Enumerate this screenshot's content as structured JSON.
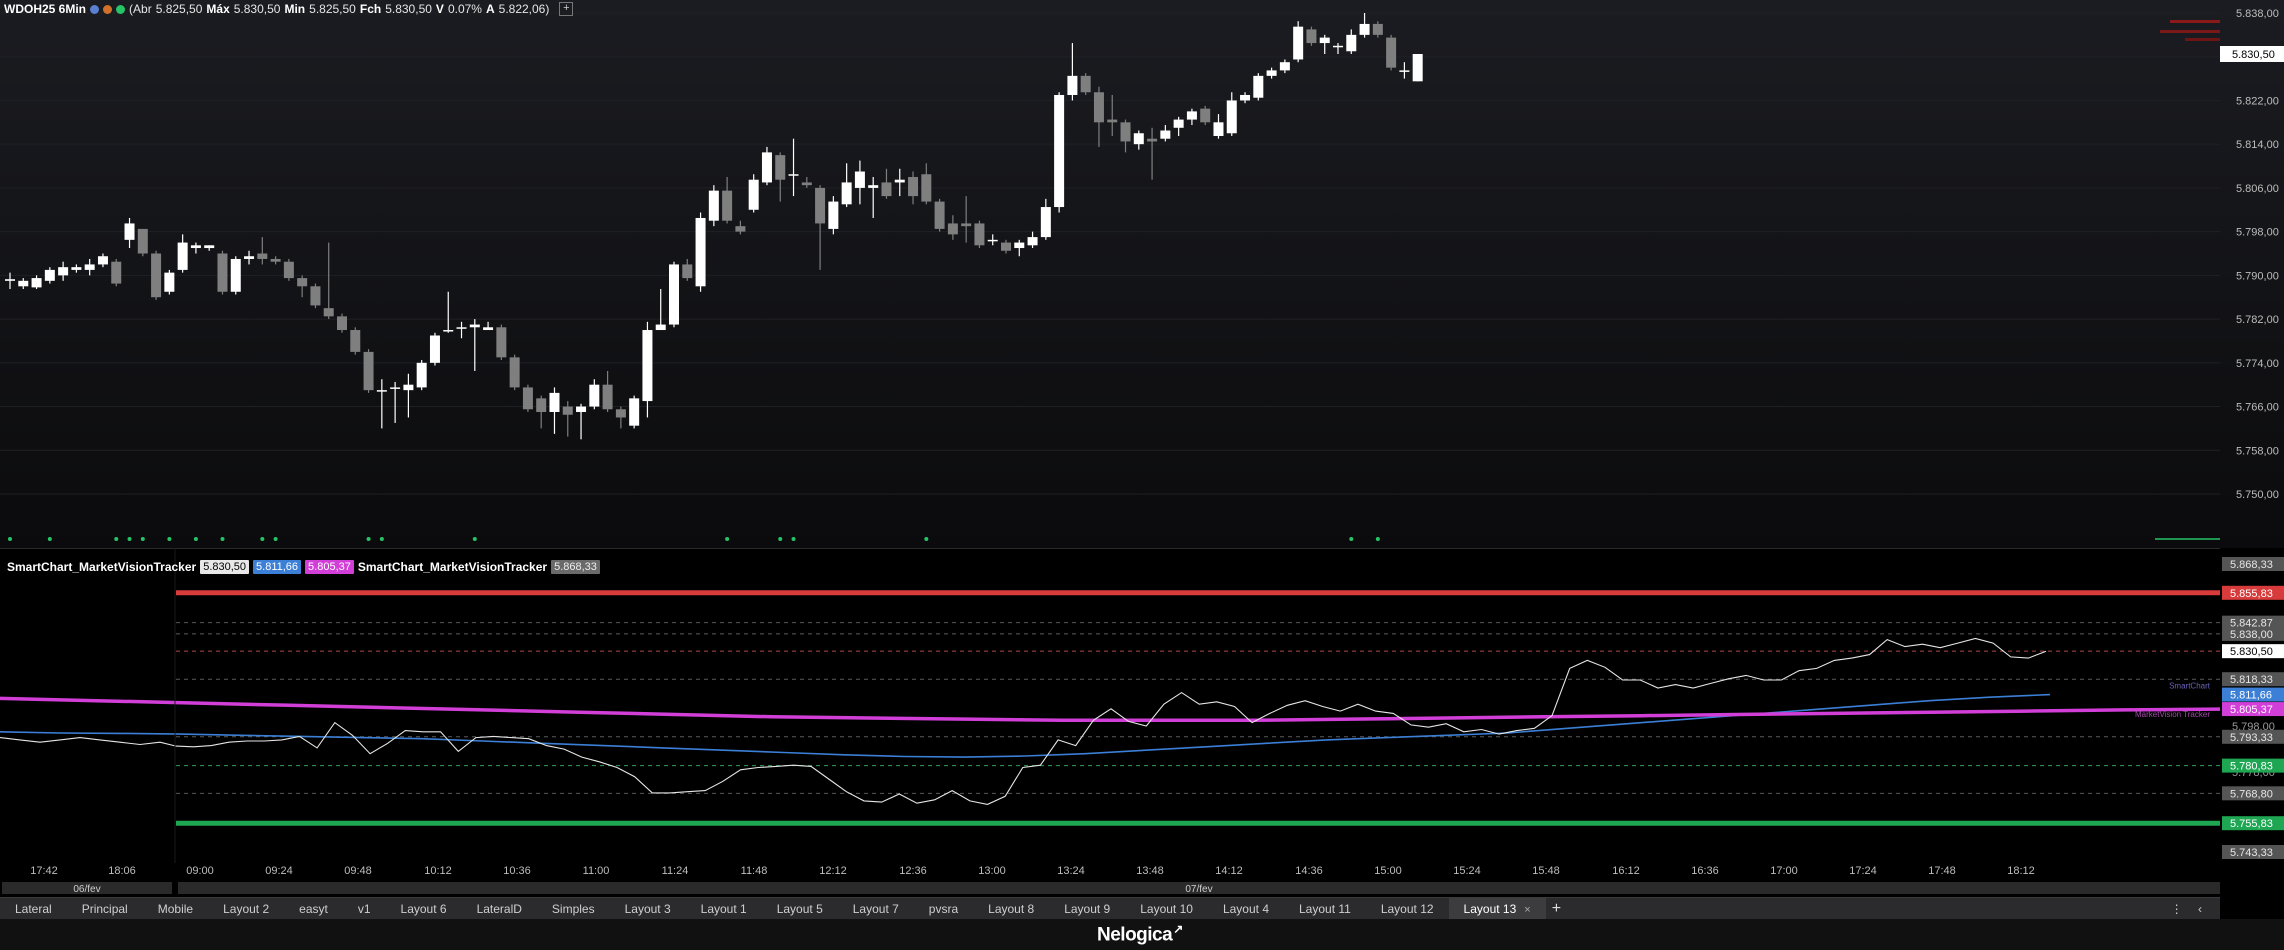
{
  "header": {
    "symbol": "WDOH25 6Min",
    "abr_label": "(Abr",
    "abr": "5.825,50",
    "max_label": "Máx",
    "max": "5.830,50",
    "min_label": "Min",
    "min": "5.825,50",
    "fch_label": "Fch",
    "fch": "5.830,50",
    "v_label": "V",
    "v": "0.07%",
    "a_label": "A",
    "a": "5.822,06)",
    "plus": "+"
  },
  "indicator_legend": {
    "name1": "SmartChart_MarketVisionTracker",
    "val1": "5.830,50",
    "val2": "5.811,66",
    "val3": "5.805,37",
    "name2": "SmartChart_MarketVisionTracker",
    "val4": "5.868,33"
  },
  "colors": {
    "up": "#ffffff",
    "down": "#7f7f7f",
    "blue": "#3b7fd6",
    "magenta": "#d23ed8",
    "red": "#d83b3b",
    "green": "#1fa653"
  },
  "chart_data": {
    "type": "candlestick",
    "title": "WDOH25 6Min",
    "price_axis": {
      "ylim": [
        5750,
        5838
      ],
      "ticks": [
        "5.838,00",
        "5.830,00",
        "5.822,00",
        "5.814,00",
        "5.806,00",
        "5.798,00",
        "5.790,00",
        "5.782,00",
        "5.774,00",
        "5.766,00",
        "5.758,00",
        "5.750,00"
      ],
      "current": "5.830,50"
    },
    "x_axis": {
      "ticks": [
        "17:42",
        "18:06",
        "09:00",
        "09:24",
        "09:48",
        "10:12",
        "10:36",
        "11:00",
        "11:24",
        "11:48",
        "12:12",
        "12:36",
        "13:00",
        "13:24",
        "13:48",
        "14:12",
        "14:36",
        "15:00",
        "15:24",
        "15:48",
        "16:12",
        "16:36",
        "17:00",
        "17:24",
        "17:48",
        "18:12"
      ],
      "dates": [
        "06/fev",
        "07/fev"
      ]
    },
    "candles": [
      [
        5789.0,
        5789.3,
        5787.5,
        5790.5
      ],
      [
        5788.0,
        5789.0,
        5787.5,
        5789.5
      ],
      [
        5787.8,
        5789.5,
        5787.5,
        5790.0
      ],
      [
        5789.0,
        5791.0,
        5788.5,
        5791.5
      ],
      [
        5790.0,
        5791.5,
        5789.0,
        5792.5
      ],
      [
        5791.0,
        5791.5,
        5790.5,
        5792.0
      ],
      [
        5791.0,
        5792.0,
        5790.0,
        5793.0
      ],
      [
        5792.0,
        5793.5,
        5791.5,
        5794.0
      ],
      [
        5792.5,
        5788.5,
        5788.0,
        5793.0
      ],
      [
        5796.5,
        5799.5,
        5795.0,
        5800.5
      ],
      [
        5798.5,
        5794.0,
        5793.5,
        5798.5
      ],
      [
        5794.0,
        5786.0,
        5785.5,
        5794.5
      ],
      [
        5787.0,
        5790.5,
        5786.5,
        5791.0
      ],
      [
        5791.0,
        5796.0,
        5790.5,
        5797.5
      ],
      [
        5795.0,
        5795.5,
        5794.0,
        5796.0
      ],
      [
        5795.0,
        5795.5,
        5794.5,
        5795.5
      ],
      [
        5794.0,
        5787.0,
        5786.5,
        5794.5
      ],
      [
        5787.0,
        5793.0,
        5786.5,
        5793.5
      ],
      [
        5793.0,
        5793.5,
        5792.0,
        5794.5
      ],
      [
        5794.0,
        5793.0,
        5792.0,
        5797.0
      ],
      [
        5793.0,
        5792.5,
        5792.0,
        5793.5
      ],
      [
        5792.5,
        5789.5,
        5789.0,
        5793.0
      ],
      [
        5789.5,
        5788.0,
        5786.0,
        5790.0
      ],
      [
        5788.0,
        5784.5,
        5784.0,
        5788.5
      ],
      [
        5784.0,
        5782.5,
        5782.0,
        5796.0
      ],
      [
        5782.5,
        5780.0,
        5779.5,
        5783.0
      ],
      [
        5780.0,
        5776.0,
        5775.5,
        5780.5
      ],
      [
        5776.0,
        5769.0,
        5768.5,
        5776.5
      ],
      [
        5769.0,
        5769.0,
        5762.0,
        5771.0
      ],
      [
        5769.5,
        5769.5,
        5763.0,
        5770.5
      ],
      [
        5769.0,
        5770.0,
        5764.0,
        5772.0
      ],
      [
        5769.5,
        5774.0,
        5769.0,
        5774.5
      ],
      [
        5774.0,
        5779.0,
        5773.5,
        5779.5
      ],
      [
        5780.0,
        5780.0,
        5779.5,
        5787.0
      ],
      [
        5780.5,
        5780.5,
        5778.5,
        5781.5
      ],
      [
        5780.5,
        5781.0,
        5772.5,
        5782.0
      ],
      [
        5780.0,
        5780.5,
        5780.0,
        5781.5
      ],
      [
        5780.5,
        5775.0,
        5774.5,
        5781.0
      ],
      [
        5775.0,
        5769.5,
        5769.0,
        5775.5
      ],
      [
        5769.5,
        5765.5,
        5765.0,
        5770.0
      ],
      [
        5767.5,
        5765.0,
        5762.0,
        5768.0
      ],
      [
        5765.0,
        5768.5,
        5761.0,
        5769.5
      ],
      [
        5766.0,
        5764.5,
        5760.5,
        5767.0
      ],
      [
        5765.0,
        5766.0,
        5760.0,
        5766.5
      ],
      [
        5766.0,
        5770.0,
        5765.5,
        5771.0
      ],
      [
        5770.0,
        5765.5,
        5765.0,
        5772.5
      ],
      [
        5765.5,
        5764.0,
        5762.0,
        5766.0
      ],
      [
        5762.5,
        5767.5,
        5762.0,
        5768.0
      ],
      [
        5767.0,
        5780.0,
        5764.0,
        5781.5
      ],
      [
        5780.0,
        5781.0,
        5780.0,
        5787.5
      ],
      [
        5781.0,
        5792.0,
        5780.5,
        5792.5
      ],
      [
        5792.0,
        5789.5,
        5789.0,
        5793.0
      ],
      [
        5788.0,
        5800.5,
        5787.0,
        5801.5
      ],
      [
        5800.0,
        5805.5,
        5799.0,
        5806.5
      ],
      [
        5805.5,
        5800.0,
        5799.5,
        5808.0
      ],
      [
        5799.0,
        5798.0,
        5797.5,
        5800.0
      ],
      [
        5802.0,
        5807.5,
        5801.5,
        5808.5
      ],
      [
        5807.0,
        5812.5,
        5806.5,
        5813.5
      ],
      [
        5812.0,
        5807.5,
        5803.5,
        5812.5
      ],
      [
        5808.5,
        5808.5,
        5804.5,
        5815.0
      ],
      [
        5807.0,
        5806.5,
        5806.0,
        5808.0
      ],
      [
        5806.0,
        5799.5,
        5791.0,
        5806.5
      ],
      [
        5798.5,
        5803.5,
        5797.5,
        5804.5
      ],
      [
        5803.0,
        5807.0,
        5802.5,
        5810.5
      ],
      [
        5806.0,
        5809.0,
        5803.0,
        5811.0
      ],
      [
        5806.0,
        5806.5,
        5800.5,
        5808.0
      ],
      [
        5807.0,
        5804.5,
        5804.0,
        5809.5
      ],
      [
        5807.0,
        5807.5,
        5804.5,
        5809.5
      ],
      [
        5808.0,
        5804.5,
        5803.0,
        5809.0
      ],
      [
        5808.5,
        5803.5,
        5803.0,
        5810.5
      ],
      [
        5803.5,
        5798.5,
        5798.0,
        5804.0
      ],
      [
        5799.5,
        5797.5,
        5796.5,
        5801.0
      ],
      [
        5799.5,
        5799.0,
        5796.0,
        5804.5
      ],
      [
        5799.5,
        5795.5,
        5795.0,
        5800.0
      ],
      [
        5796.5,
        5796.5,
        5795.5,
        5797.5
      ],
      [
        5796.0,
        5794.5,
        5794.0,
        5796.5
      ],
      [
        5795.0,
        5796.0,
        5793.5,
        5796.5
      ],
      [
        5795.5,
        5797.0,
        5795.0,
        5798.0
      ],
      [
        5797.0,
        5802.5,
        5796.5,
        5804.0
      ],
      [
        5802.5,
        5823.0,
        5801.5,
        5823.5
      ],
      [
        5823.0,
        5826.5,
        5822.0,
        5832.5
      ],
      [
        5826.5,
        5823.5,
        5823.0,
        5827.0
      ],
      [
        5823.5,
        5818.0,
        5813.5,
        5824.5
      ],
      [
        5818.5,
        5818.0,
        5815.5,
        5823.0
      ],
      [
        5818.0,
        5814.5,
        5812.5,
        5818.5
      ],
      [
        5814.0,
        5816.0,
        5813.0,
        5816.5
      ],
      [
        5815.0,
        5814.5,
        5807.5,
        5817.0
      ],
      [
        5815.0,
        5816.5,
        5814.5,
        5817.5
      ],
      [
        5817.0,
        5818.5,
        5815.5,
        5819.0
      ],
      [
        5818.5,
        5820.0,
        5817.5,
        5820.5
      ],
      [
        5820.5,
        5818.0,
        5817.5,
        5821.0
      ],
      [
        5815.5,
        5818.0,
        5815.0,
        5819.5
      ],
      [
        5816.0,
        5822.0,
        5815.5,
        5823.5
      ],
      [
        5822.0,
        5823.0,
        5821.5,
        5823.5
      ],
      [
        5822.5,
        5826.5,
        5822.0,
        5827.0
      ],
      [
        5826.5,
        5827.5,
        5826.0,
        5828.0
      ],
      [
        5827.5,
        5829.0,
        5827.0,
        5829.5
      ],
      [
        5829.5,
        5835.5,
        5829.0,
        5836.5
      ],
      [
        5835.0,
        5832.5,
        5832.0,
        5835.5
      ],
      [
        5832.5,
        5833.5,
        5830.5,
        5834.0
      ],
      [
        5832.0,
        5832.0,
        5830.5,
        5832.5
      ],
      [
        5831.0,
        5834.0,
        5830.5,
        5835.0
      ],
      [
        5834.0,
        5836.0,
        5833.5,
        5838.0
      ],
      [
        5836.0,
        5834.0,
        5833.5,
        5836.5
      ],
      [
        5833.5,
        5828.0,
        5827.5,
        5834.0
      ],
      [
        5827.5,
        5827.5,
        5826.0,
        5829.0
      ],
      [
        5825.5,
        5830.5,
        5825.5,
        5830.5
      ]
    ],
    "signal_dot_candles": [
      0,
      3,
      8,
      9,
      10,
      12,
      14,
      16,
      19,
      20,
      27,
      28,
      35,
      54,
      58,
      59,
      69,
      101,
      103
    ],
    "indicator": {
      "name": "SmartChart_MarketVisionTracker",
      "ylim": [
        5743.33,
        5868.33
      ],
      "levels": [
        {
          "value": 5855.83,
          "label": "5.855,83",
          "kind": "red"
        },
        {
          "value": 5842.87,
          "label": "5.842,87",
          "kind": "dash"
        },
        {
          "value": 5838.0,
          "label": "5.838,00",
          "kind": "dash"
        },
        {
          "value": 5830.5,
          "label": "5.830,50",
          "kind": "dash-red"
        },
        {
          "value": 5818.33,
          "label": "5.818,33",
          "kind": "dash"
        },
        {
          "value": 5793.33,
          "label": "5.793,33",
          "kind": "dash"
        },
        {
          "value": 5780.83,
          "label": "5.780,83",
          "kind": "dash-green"
        },
        {
          "value": 5768.8,
          "label": "5.768,80",
          "kind": "dash"
        },
        {
          "value": 5755.83,
          "label": "5.755,83",
          "kind": "green"
        }
      ],
      "extra_ticks": [
        {
          "value": 5868.33,
          "label": "5.868,33"
        },
        {
          "value": 5743.33,
          "label": "5.743,33"
        },
        {
          "value": 5798.0,
          "label": "5.798,00"
        },
        {
          "value": 5778.0,
          "label": "5.778,00"
        }
      ],
      "series": [
        {
          "name": "SmartChart",
          "value_label": "5.811,66",
          "kind": "blue"
        },
        {
          "name": "MarketVision Tracker",
          "value_label": "5.805,37",
          "kind": "magenta"
        }
      ],
      "blue_values": [
        5795.5,
        5795.0,
        5794.8,
        5794.5,
        5794.0,
        5793.5,
        5793.0,
        5792.5,
        5791.5,
        5790.5,
        5789.5,
        5788.5,
        5787.5,
        5786.5,
        5785.5,
        5784.8,
        5784.5,
        5785.0,
        5786.0,
        5787.5,
        5789.0,
        5790.5,
        5792.0,
        5793.0,
        5794.0,
        5795.0,
        5797.0,
        5799.0,
        5801.0,
        5803.0,
        5805.0,
        5807.0,
        5809.0,
        5810.5,
        5811.66
      ],
      "magenta_values": [
        5810.0,
        5809.0,
        5808.0,
        5807.0,
        5806.0,
        5805.0,
        5804.0,
        5803.0,
        5802.0,
        5801.5,
        5801.0,
        5800.5,
        5800.5,
        5800.5,
        5801.0,
        5801.5,
        5802.0,
        5802.5,
        5803.0,
        5803.5,
        5804.0,
        5804.5,
        5805.0,
        5805.37
      ]
    }
  },
  "tabs": [
    {
      "label": "Lateral"
    },
    {
      "label": "Principal"
    },
    {
      "label": "Mobile"
    },
    {
      "label": "Layout 2"
    },
    {
      "label": "easyt"
    },
    {
      "label": "v1"
    },
    {
      "label": "Layout 6"
    },
    {
      "label": "LateralD"
    },
    {
      "label": "Simples"
    },
    {
      "label": "Layout 3"
    },
    {
      "label": "Layout 1"
    },
    {
      "label": "Layout 5"
    },
    {
      "label": "Layout 7"
    },
    {
      "label": "pvsra"
    },
    {
      "label": "Layout 8"
    },
    {
      "label": "Layout 9"
    },
    {
      "label": "Layout 10"
    },
    {
      "label": "Layout 4"
    },
    {
      "label": "Layout 11"
    },
    {
      "label": "Layout 12"
    },
    {
      "label": "Layout 13",
      "active": true
    }
  ],
  "tab_close": "×",
  "tab_add": "+",
  "tab_menu": "⋮ ‹",
  "brand": "Nelogica"
}
